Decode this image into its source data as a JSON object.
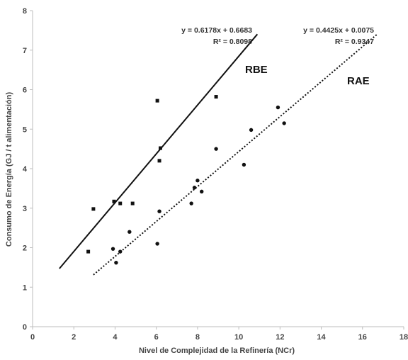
{
  "chart_data": {
    "type": "scatter",
    "xlabel": "Nivel de Complejidad de la Refinería (NCr)",
    "ylabel": "Consumo de Energía (GJ / t alimentación)",
    "xlim": [
      0,
      18
    ],
    "ylim": [
      0,
      8
    ],
    "x_ticks": [
      "0",
      "2",
      "4",
      "6",
      "8",
      "10",
      "12",
      "14",
      "16",
      "18"
    ],
    "y_ticks": [
      "0",
      "1",
      "2",
      "3",
      "4",
      "5",
      "6",
      "7",
      "8"
    ],
    "grid": false,
    "series": [
      {
        "name": "RBE",
        "marker": "square",
        "color": "#111111",
        "points": [
          {
            "x": 2.7,
            "y": 1.9
          },
          {
            "x": 2.95,
            "y": 2.98
          },
          {
            "x": 3.95,
            "y": 3.17
          },
          {
            "x": 4.25,
            "y": 3.12
          },
          {
            "x": 4.85,
            "y": 3.12
          },
          {
            "x": 6.05,
            "y": 5.72
          },
          {
            "x": 6.15,
            "y": 4.2
          },
          {
            "x": 6.2,
            "y": 4.52
          },
          {
            "x": 8.9,
            "y": 5.82
          }
        ],
        "trendline": {
          "style": "solid",
          "slope": 0.6178,
          "intercept": 0.6683,
          "x_range": [
            1.3,
            10.9
          ],
          "equation": "y = 0.6178x + 0.6683",
          "r2": "R² = 0.8098"
        }
      },
      {
        "name": "RAE",
        "marker": "circle",
        "color": "#111111",
        "points": [
          {
            "x": 3.9,
            "y": 1.97
          },
          {
            "x": 4.05,
            "y": 1.62
          },
          {
            "x": 4.25,
            "y": 1.9
          },
          {
            "x": 4.7,
            "y": 2.4
          },
          {
            "x": 6.05,
            "y": 2.1
          },
          {
            "x": 6.15,
            "y": 2.92
          },
          {
            "x": 7.7,
            "y": 3.12
          },
          {
            "x": 7.85,
            "y": 3.52
          },
          {
            "x": 8.0,
            "y": 3.7
          },
          {
            "x": 8.2,
            "y": 3.42
          },
          {
            "x": 8.9,
            "y": 4.5
          },
          {
            "x": 10.25,
            "y": 4.1
          },
          {
            "x": 10.6,
            "y": 4.98
          },
          {
            "x": 11.9,
            "y": 5.55
          },
          {
            "x": 12.2,
            "y": 5.15
          }
        ],
        "trendline": {
          "style": "dotted",
          "slope": 0.4425,
          "intercept": 0.0075,
          "x_range": [
            2.95,
            16.7
          ],
          "equation": "y = 0.4425x + 0.0075",
          "r2": "R² = 0.9347"
        }
      }
    ]
  }
}
